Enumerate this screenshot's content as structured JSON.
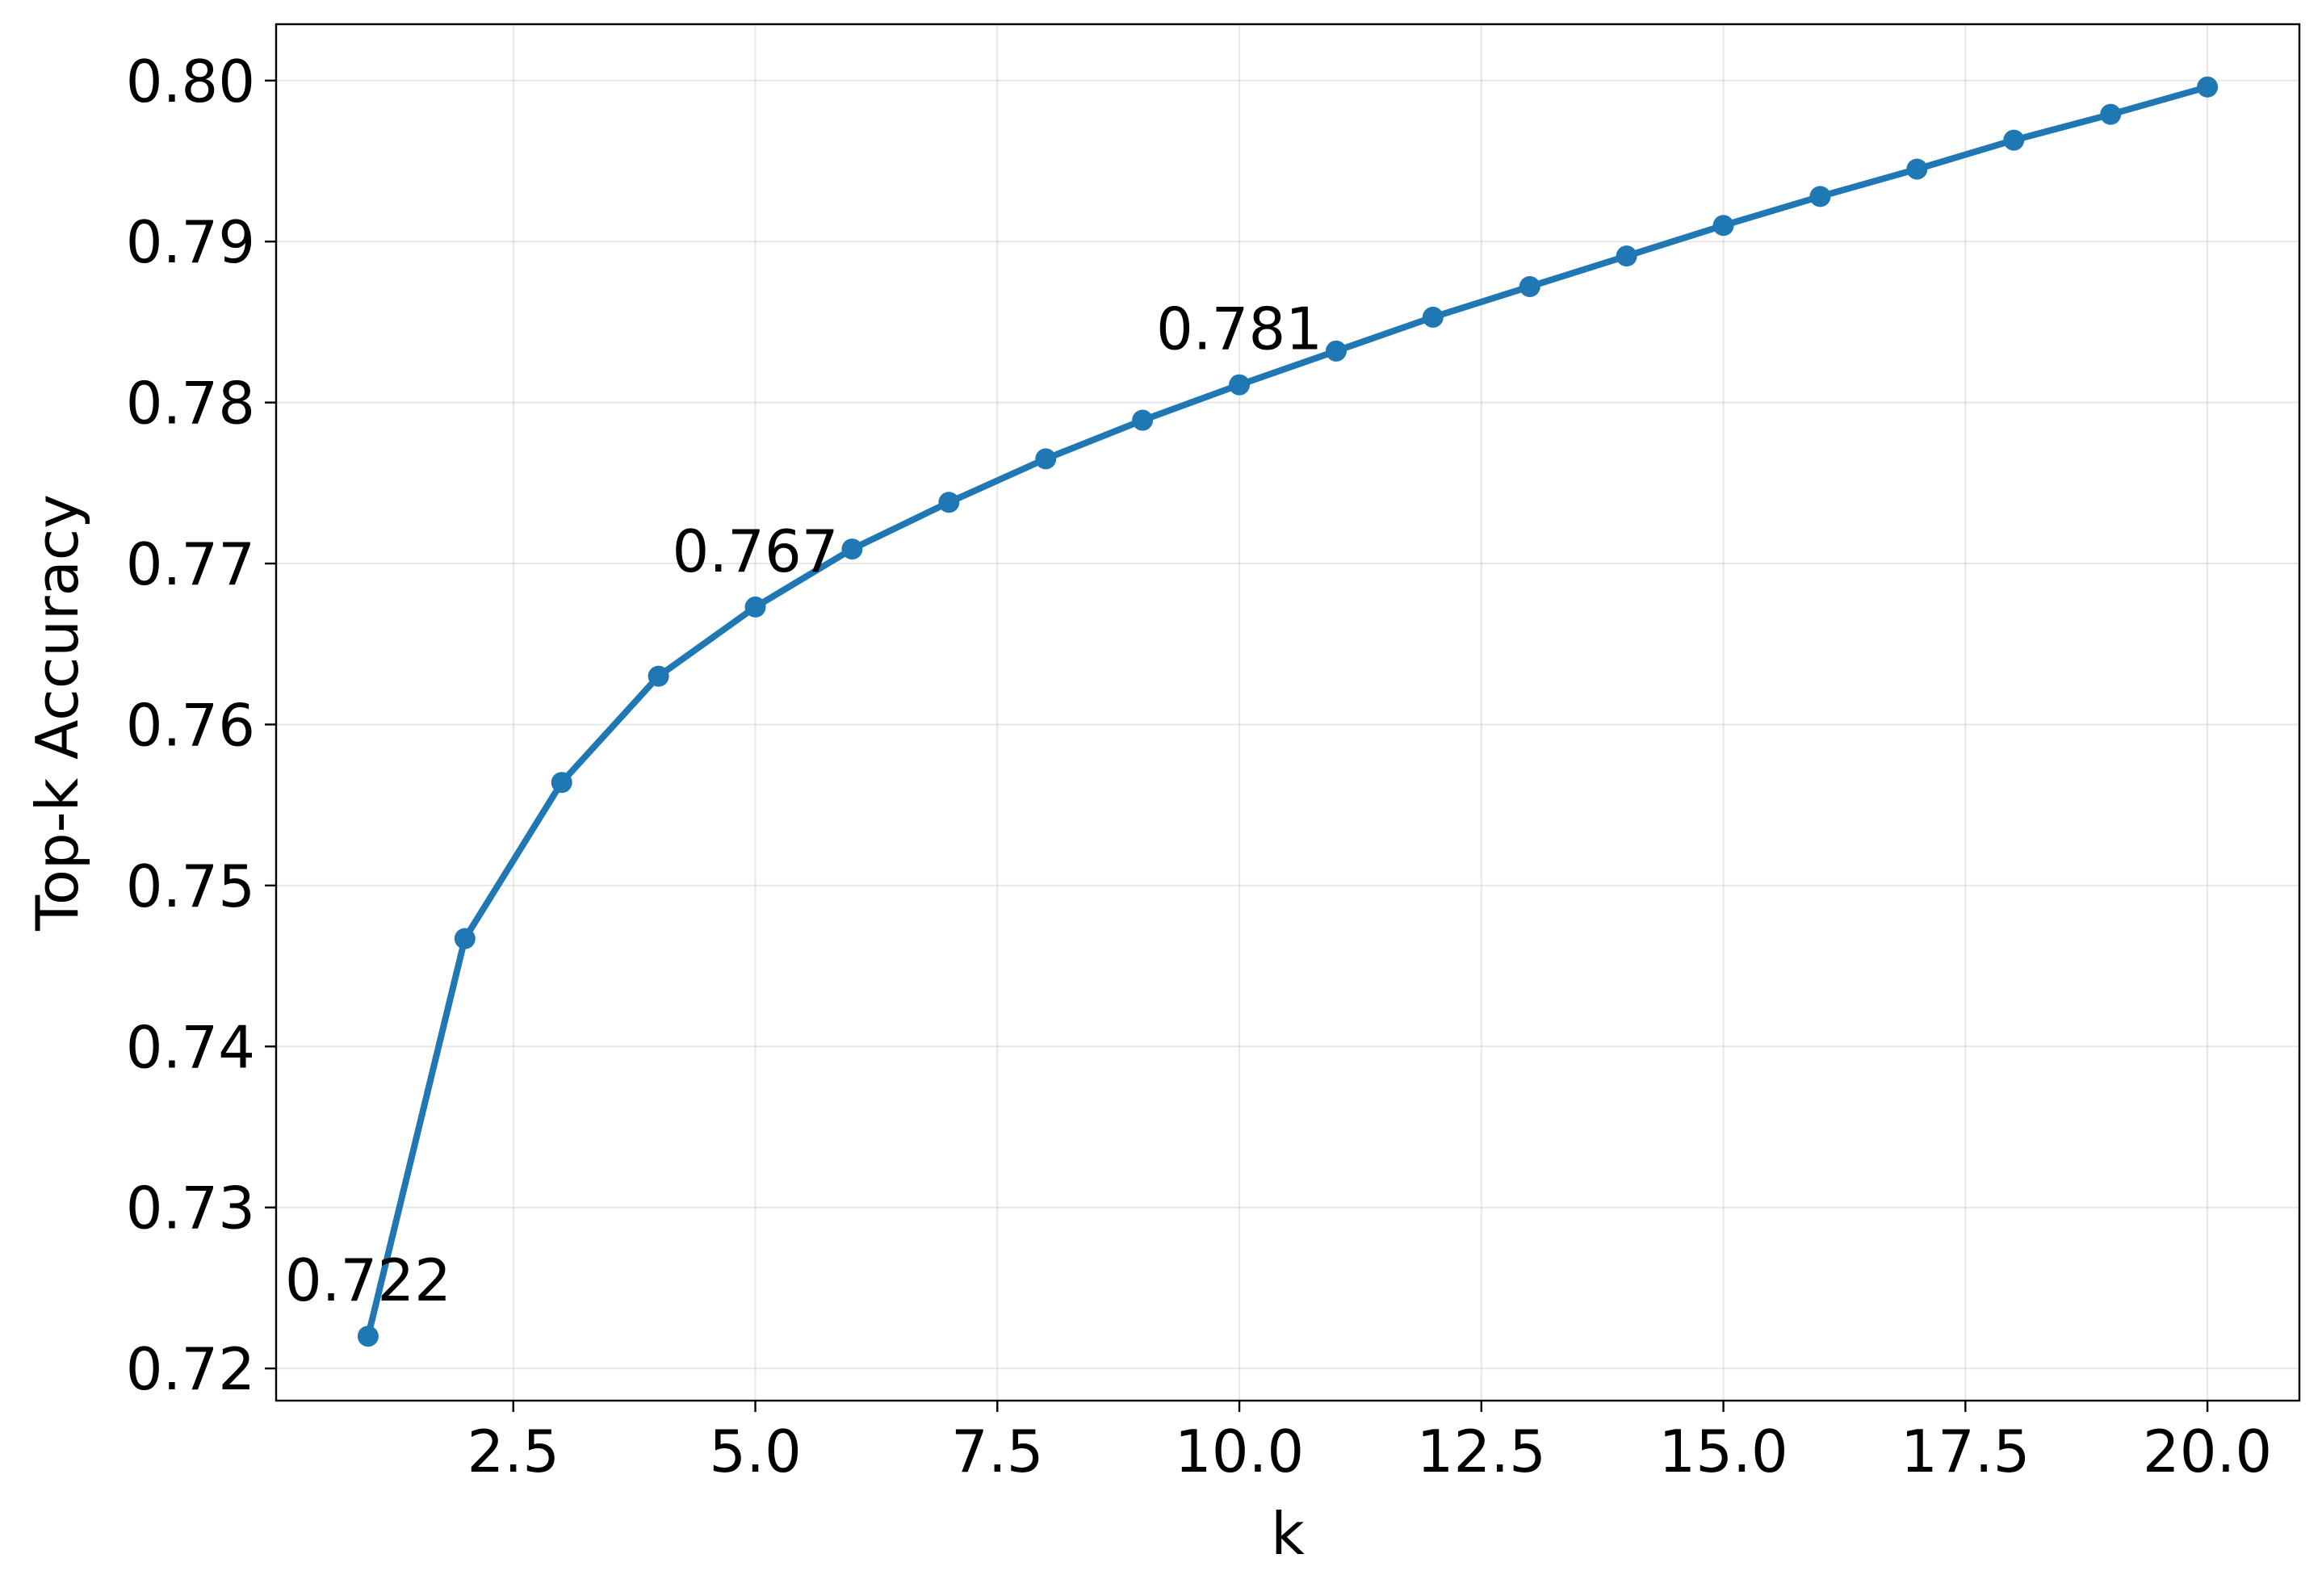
{
  "chart_data": {
    "type": "line",
    "title": "",
    "xlabel": "k",
    "ylabel": "Top-k Accuracy",
    "xlim": [
      0.05,
      20.95
    ],
    "ylim": [
      0.718,
      0.8035
    ],
    "grid": true,
    "x_ticks": [
      2.5,
      5.0,
      7.5,
      10.0,
      12.5,
      15.0,
      17.5,
      20.0
    ],
    "x_tick_labels": [
      "2.5",
      "5.0",
      "7.5",
      "10.0",
      "12.5",
      "15.0",
      "17.5",
      "20.0"
    ],
    "y_ticks": [
      0.72,
      0.73,
      0.74,
      0.75,
      0.76,
      0.77,
      0.78,
      0.79,
      0.8
    ],
    "y_tick_labels": [
      "0.72",
      "0.73",
      "0.74",
      "0.75",
      "0.76",
      "0.77",
      "0.78",
      "0.79",
      "0.80"
    ],
    "line_color": "#1f77b4",
    "series": [
      {
        "x": [
          1,
          2,
          3,
          4,
          5,
          6,
          7,
          8,
          9,
          10,
          11,
          12,
          13,
          14,
          15,
          16,
          17,
          18,
          19,
          20
        ],
        "values": [
          0.722,
          0.7467,
          0.7564,
          0.763,
          0.7673,
          0.7709,
          0.7738,
          0.7765,
          0.7789,
          0.7811,
          0.7832,
          0.7853,
          0.7872,
          0.7891,
          0.791,
          0.7928,
          0.7945,
          0.7963,
          0.7979,
          0.7996
        ]
      }
    ],
    "annotations": [
      {
        "text": "0.722",
        "x": 1,
        "y": 0.722
      },
      {
        "text": "0.767",
        "x": 5,
        "y": 0.7673
      },
      {
        "text": "0.781",
        "x": 10,
        "y": 0.7811
      }
    ]
  }
}
